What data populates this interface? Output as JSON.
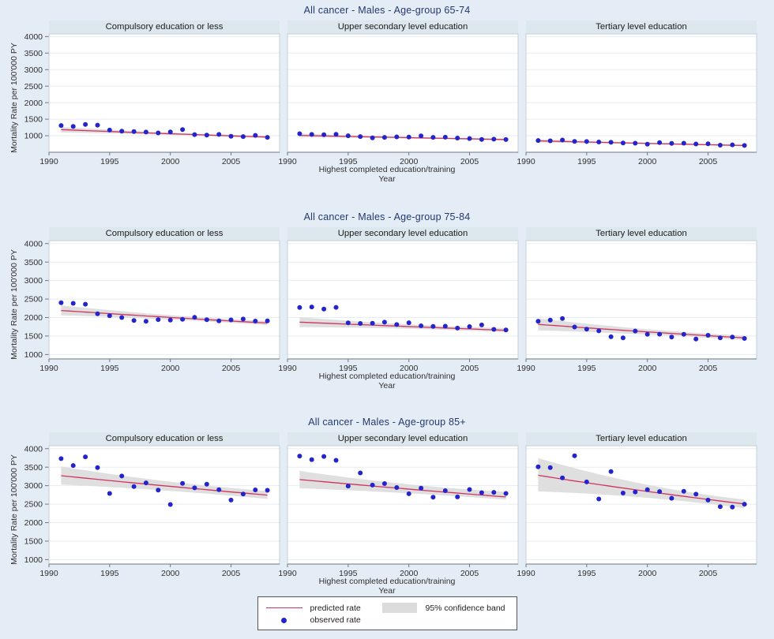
{
  "legend": {
    "predicted": "predicted rate",
    "observed": "observed rate",
    "ci": "95% confidence band"
  },
  "colors": {
    "page_background": "#e4edf5",
    "plot_background": "#ffffff",
    "header_background": "#dce7ee",
    "gridline": "#e6edf3",
    "plot_border": "#c6cfd7",
    "axis_line": "#6e767e",
    "axis_text": "#303030",
    "title_text": "#24386f",
    "observed": "#2424cc",
    "predicted": "#cf3560",
    "ci_band": "#dcdcdc"
  },
  "chart_data": [
    {
      "type": "scatter",
      "title": "All cancer - Males - Age-group 65-74",
      "ylabel": "Mortality Rate per 100'000 PY",
      "xlabel": "Highest completed education/training",
      "xlabel2": "Year",
      "xlim": [
        1990,
        2009
      ],
      "ylim": [
        500,
        4080
      ],
      "xticks": [
        1990,
        1995,
        2000,
        2005
      ],
      "yticks": [
        1000,
        1500,
        2000,
        2500,
        3000,
        3500,
        4000
      ],
      "x": [
        1991,
        1992,
        1993,
        1994,
        1995,
        1996,
        1997,
        1998,
        1999,
        2000,
        2001,
        2002,
        2003,
        2004,
        2005,
        2006,
        2007,
        2008
      ],
      "panels": [
        {
          "label": "Compulsory education or less",
          "observed": [
            1310,
            1280,
            1340,
            1320,
            1170,
            1140,
            1125,
            1110,
            1085,
            1115,
            1185,
            1035,
            1020,
            1040,
            985,
            975,
            1010,
            950
          ],
          "predicted": {
            "start": 1185,
            "end": 960
          },
          "ci": {
            "start": [
              1100,
              1265
            ],
            "mid_pad": 15,
            "end": [
              925,
              1000
            ]
          }
        },
        {
          "label": "Upper secondary level education",
          "observed": [
            1060,
            1040,
            1030,
            1045,
            1000,
            975,
            935,
            950,
            965,
            960,
            995,
            950,
            955,
            930,
            915,
            890,
            895,
            885
          ],
          "predicted": {
            "start": 1010,
            "end": 885
          },
          "ci": {
            "start": [
              955,
              1065
            ],
            "mid_pad": 12,
            "end": [
              855,
              915
            ]
          }
        },
        {
          "label": "Tertiary level education",
          "observed": [
            855,
            845,
            870,
            830,
            825,
            810,
            800,
            780,
            775,
            745,
            790,
            770,
            775,
            750,
            755,
            715,
            725,
            705
          ],
          "predicted": {
            "start": 845,
            "end": 705
          },
          "ci": {
            "start": [
              795,
              895
            ],
            "mid_pad": 12,
            "end": [
              680,
              730
            ]
          }
        }
      ]
    },
    {
      "type": "scatter",
      "title": "All cancer - Males - Age-group 75-84",
      "ylabel": "Mortality Rate per 100'000 PY",
      "xlabel": "Highest completed education/training",
      "xlabel2": "Year",
      "xlim": [
        1990,
        2009
      ],
      "ylim": [
        880,
        4080
      ],
      "xticks": [
        1990,
        1995,
        2000,
        2005
      ],
      "yticks": [
        1000,
        1500,
        2000,
        2500,
        3000,
        3500,
        4000
      ],
      "x": [
        1991,
        1992,
        1993,
        1994,
        1995,
        1996,
        1997,
        1998,
        1999,
        2000,
        2001,
        2002,
        2003,
        2004,
        2005,
        2006,
        2007,
        2008
      ],
      "panels": [
        {
          "label": "Compulsory education or less",
          "observed": [
            2400,
            2385,
            2360,
            2100,
            2050,
            2000,
            1920,
            1900,
            1945,
            1930,
            1950,
            2005,
            1940,
            1910,
            1935,
            1960,
            1905,
            1910
          ],
          "predicted": {
            "start": 2190,
            "end": 1850
          },
          "ci": {
            "start": [
              2060,
              2330
            ],
            "mid_pad": 30,
            "end": [
              1795,
              1905
            ]
          }
        },
        {
          "label": "Upper secondary level education",
          "observed": [
            2270,
            2285,
            2230,
            2275,
            1855,
            1840,
            1845,
            1875,
            1810,
            1860,
            1775,
            1760,
            1765,
            1715,
            1755,
            1800,
            1680,
            1665
          ],
          "predicted": {
            "start": 1875,
            "end": 1655
          },
          "ci": {
            "start": [
              1740,
              2010
            ],
            "mid_pad": 30,
            "end": [
              1600,
              1715
            ]
          }
        },
        {
          "label": "Tertiary level education",
          "observed": [
            1900,
            1930,
            1975,
            1745,
            1685,
            1640,
            1480,
            1450,
            1635,
            1545,
            1550,
            1470,
            1545,
            1420,
            1520,
            1450,
            1470,
            1435
          ],
          "predicted": {
            "start": 1815,
            "end": 1450
          },
          "ci": {
            "start": [
              1655,
              1975
            ],
            "mid_pad": 40,
            "end": [
              1390,
              1510
            ]
          }
        }
      ]
    },
    {
      "type": "scatter",
      "title": "All cancer - Males - Age-group 85+",
      "ylabel": "Mortality Rate per 100'000 PY",
      "xlabel": "Highest completed education/training",
      "xlabel2": "Year",
      "xlim": [
        1990,
        2009
      ],
      "ylim": [
        880,
        4080
      ],
      "xticks": [
        1990,
        1995,
        2000,
        2005
      ],
      "yticks": [
        1000,
        1500,
        2000,
        2500,
        3000,
        3500,
        4000
      ],
      "x": [
        1991,
        1992,
        1993,
        1994,
        1995,
        1996,
        1997,
        1998,
        1999,
        2000,
        2001,
        2002,
        2003,
        2004,
        2005,
        2006,
        2007,
        2008
      ],
      "panels": [
        {
          "label": "Compulsory education or less",
          "observed": [
            3730,
            3545,
            3780,
            3490,
            2790,
            3260,
            2975,
            3075,
            2880,
            2490,
            3060,
            2940,
            3040,
            2890,
            2610,
            2775,
            2885,
            2875
          ],
          "predicted": {
            "start": 3270,
            "end": 2745
          },
          "ci": {
            "start": [
              3030,
              3520
            ],
            "mid_pad": 80,
            "end": [
              2640,
              2855
            ]
          }
        },
        {
          "label": "Upper secondary level education",
          "observed": [
            3800,
            3705,
            3790,
            3685,
            2990,
            3345,
            3015,
            3055,
            2950,
            2780,
            2935,
            2690,
            2865,
            2695,
            2895,
            2810,
            2820,
            2790
          ],
          "predicted": {
            "start": 3165,
            "end": 2695
          },
          "ci": {
            "start": [
              2930,
              3400
            ],
            "mid_pad": 80,
            "end": [
              2620,
              2830
            ]
          }
        },
        {
          "label": "Tertiary level education",
          "observed": [
            3510,
            3490,
            3210,
            3810,
            3100,
            2640,
            3380,
            2800,
            2830,
            2890,
            2840,
            2660,
            2850,
            2770,
            2610,
            2430,
            2420,
            2500
          ],
          "predicted": {
            "start": 3280,
            "end": 2505
          },
          "ci": {
            "start": [
              2845,
              3745
            ],
            "mid_pad": 90,
            "end": [
              2390,
              2625
            ]
          }
        }
      ]
    }
  ]
}
